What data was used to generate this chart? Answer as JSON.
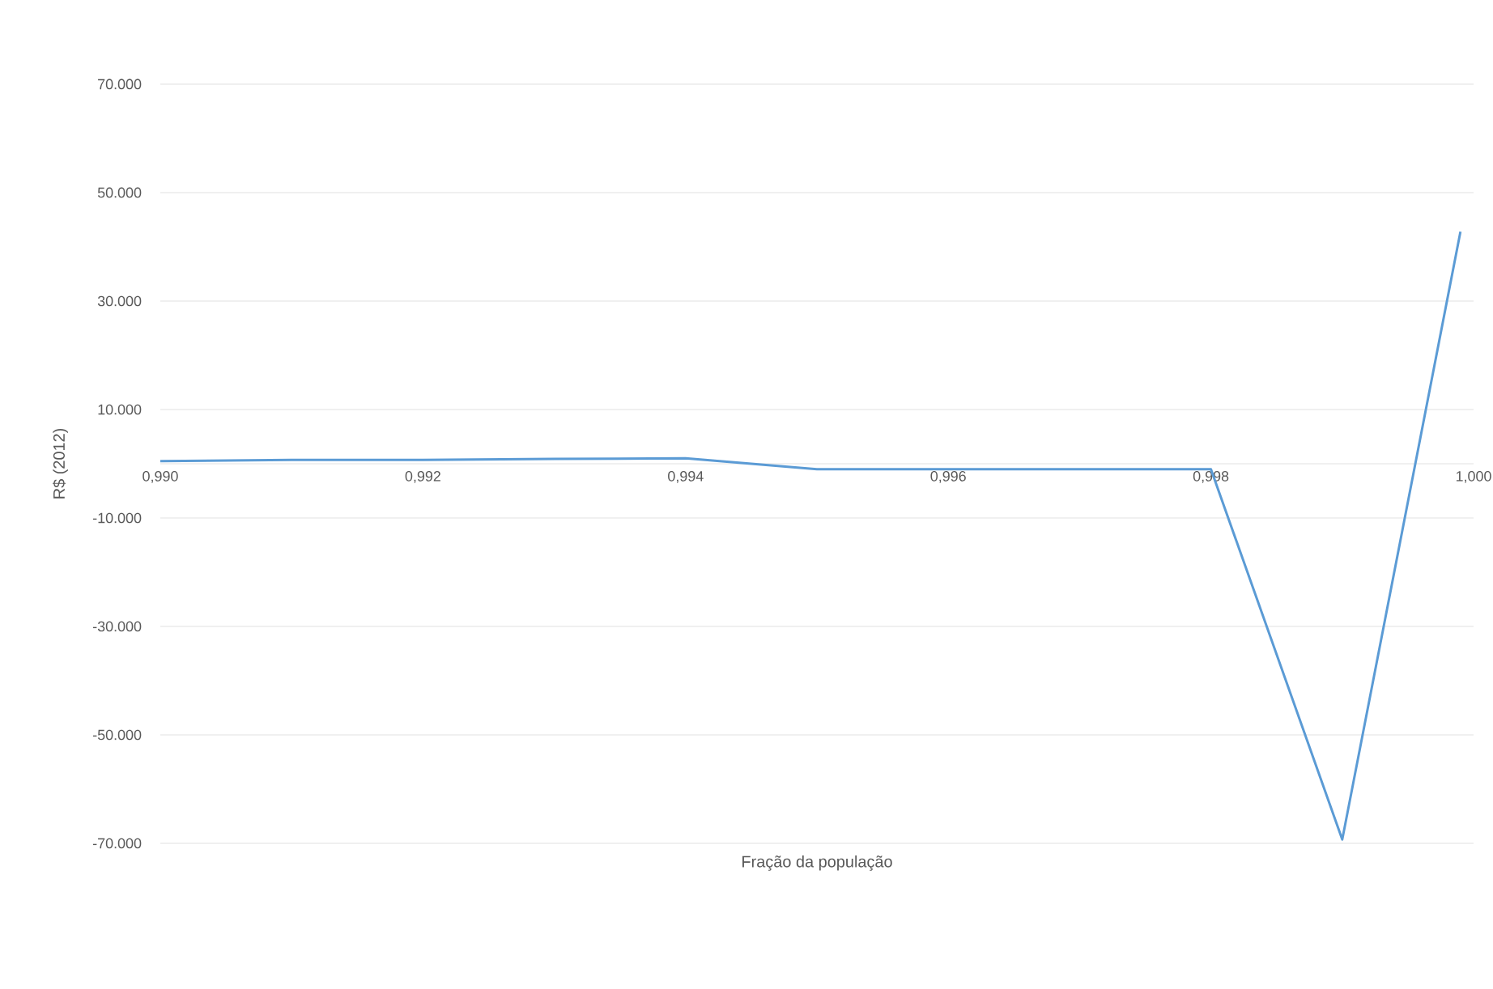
{
  "chart_data": {
    "type": "line",
    "xlabel": "Fração da população",
    "ylabel": "R$ (2012)",
    "x": [
      0.99,
      0.991,
      0.992,
      0.993,
      0.994,
      0.995,
      0.996,
      0.997,
      0.998,
      0.999,
      0.9999
    ],
    "series": [
      {
        "color": "#5b9bd5",
        "values": [
          500,
          700,
          700,
          900,
          1000,
          -1000,
          -1000,
          -1000,
          -1000,
          -69300,
          42800
        ]
      }
    ],
    "xlim": [
      0.99,
      1.0
    ],
    "xticks": [
      {
        "value": 0.99,
        "label": "0,990"
      },
      {
        "value": 0.992,
        "label": "0,992"
      },
      {
        "value": 0.994,
        "label": "0,994"
      },
      {
        "value": 0.996,
        "label": "0,996"
      },
      {
        "value": 0.998,
        "label": "0,998"
      },
      {
        "value": 1.0,
        "label": "1,000"
      }
    ],
    "ylim": [
      -70000,
      70000
    ],
    "yticks": [
      {
        "value": -70000,
        "label": "-70.000"
      },
      {
        "value": -50000,
        "label": "-50.000"
      },
      {
        "value": -30000,
        "label": "-30.000"
      },
      {
        "value": -10000,
        "label": "-10.000"
      },
      {
        "value": 10000,
        "label": "10.000"
      },
      {
        "value": 30000,
        "label": "30.000"
      },
      {
        "value": 50000,
        "label": "50.000"
      },
      {
        "value": 70000,
        "label": "70.000"
      }
    ],
    "grid": "y",
    "marker": "none",
    "line_style": "solid"
  }
}
